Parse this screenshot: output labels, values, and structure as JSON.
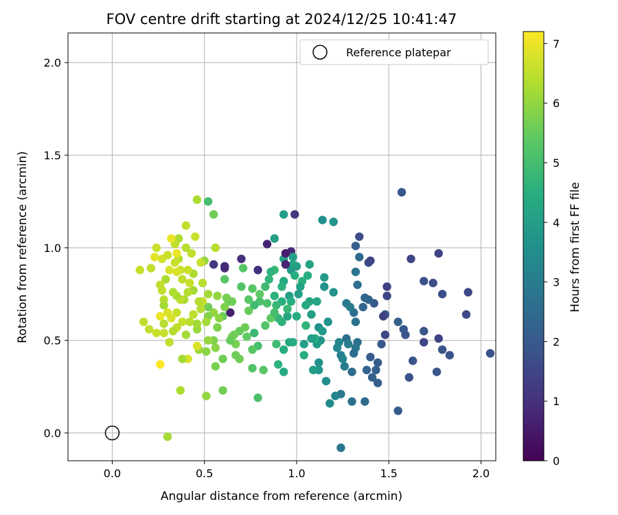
{
  "chart_data": {
    "type": "scatter",
    "title": "FOV centre drift starting at 2024/12/25 10:41:47",
    "xlabel": "Angular distance from reference (arcmin)",
    "ylabel": "Rotation from reference (arcmin)",
    "xlim": [
      -0.24,
      2.08
    ],
    "ylim": [
      -0.15,
      2.16
    ],
    "x_ticks": [
      0.0,
      0.5,
      1.0,
      1.5,
      2.0
    ],
    "x_tick_labels": [
      "0.0",
      "0.5",
      "1.0",
      "1.5",
      "2.0"
    ],
    "y_ticks": [
      0.0,
      0.5,
      1.0,
      1.5,
      2.0
    ],
    "y_tick_labels": [
      "0.0",
      "0.5",
      "1.0",
      "1.5",
      "2.0"
    ],
    "grid": true,
    "colormap": "viridis",
    "colorbar": {
      "label": "Hours from first FF file",
      "range": [
        0,
        7.2
      ],
      "ticks": [
        0,
        1,
        2,
        3,
        4,
        5,
        6,
        7
      ],
      "tick_labels": [
        "0",
        "1",
        "2",
        "3",
        "4",
        "5",
        "6",
        "7"
      ]
    },
    "reference": {
      "x": 0.0,
      "y": 0.0,
      "label": "Reference platepar"
    },
    "legend_position": "top-right",
    "points": [
      [
        1.57,
        1.3,
        1.9
      ],
      [
        1.62,
        0.94,
        1.5
      ],
      [
        1.77,
        0.97,
        1.4
      ],
      [
        1.69,
        0.82,
        1.8
      ],
      [
        1.74,
        0.81,
        1.7
      ],
      [
        1.79,
        0.75,
        1.7
      ],
      [
        1.93,
        0.76,
        1.6
      ],
      [
        1.92,
        0.64,
        1.6
      ],
      [
        2.05,
        0.43,
        1.8
      ],
      [
        1.83,
        0.42,
        1.8
      ],
      [
        1.79,
        0.45,
        1.9
      ],
      [
        1.77,
        0.51,
        1.4
      ],
      [
        1.69,
        0.49,
        1.5
      ],
      [
        1.69,
        0.55,
        1.9
      ],
      [
        1.76,
        0.33,
        1.9
      ],
      [
        1.63,
        0.39,
        1.9
      ],
      [
        1.61,
        0.3,
        1.8
      ],
      [
        1.59,
        0.53,
        1.8
      ],
      [
        1.58,
        0.56,
        2.0
      ],
      [
        1.55,
        0.6,
        2.2
      ],
      [
        1.55,
        0.12,
        2.1
      ],
      [
        1.49,
        0.79,
        1.4
      ],
      [
        1.49,
        0.74,
        1.5
      ],
      [
        1.48,
        0.64,
        1.9
      ],
      [
        1.47,
        0.63,
        1.4
      ],
      [
        1.48,
        0.53,
        1.5
      ],
      [
        1.46,
        0.48,
        2.0
      ],
      [
        1.44,
        0.38,
        2.1
      ],
      [
        1.43,
        0.34,
        2.2
      ],
      [
        1.44,
        0.27,
        2.2
      ],
      [
        1.4,
        0.93,
        1.4
      ],
      [
        1.39,
        0.92,
        1.6
      ],
      [
        1.42,
        0.7,
        2.0
      ],
      [
        1.39,
        0.72,
        2.3
      ],
      [
        1.37,
        0.73,
        2.4
      ],
      [
        1.36,
        0.68,
        2.4
      ],
      [
        1.4,
        0.41,
        2.1
      ],
      [
        1.41,
        0.3,
        2.2
      ],
      [
        1.38,
        0.34,
        2.3
      ],
      [
        1.37,
        0.17,
        2.5
      ],
      [
        1.34,
        1.06,
        1.7
      ],
      [
        1.32,
        1.01,
        2.1
      ],
      [
        1.34,
        0.95,
        2.5
      ],
      [
        1.32,
        0.87,
        2.8
      ],
      [
        1.33,
        0.8,
        2.6
      ],
      [
        1.32,
        0.6,
        2.7
      ],
      [
        1.33,
        0.49,
        2.7
      ],
      [
        1.32,
        0.46,
        2.8
      ],
      [
        1.31,
        0.43,
        2.6
      ],
      [
        1.3,
        0.33,
        2.5
      ],
      [
        1.3,
        0.17,
        2.7
      ],
      [
        1.31,
        0.65,
        2.6
      ],
      [
        1.29,
        0.68,
        3.0
      ],
      [
        1.27,
        0.51,
        2.6
      ],
      [
        1.28,
        0.48,
        3.0
      ],
      [
        1.26,
        0.36,
        3.0
      ],
      [
        1.24,
        0.42,
        3.0
      ],
      [
        1.25,
        0.4,
        3.2
      ],
      [
        1.24,
        0.21,
        2.9
      ],
      [
        1.23,
        0.49,
        3.3
      ],
      [
        1.21,
        0.2,
        3.2
      ],
      [
        1.24,
        -0.08,
        2.8
      ],
      [
        1.2,
        1.14,
        3.7
      ],
      [
        1.18,
        0.16,
        3.4
      ],
      [
        1.16,
        0.28,
        3.5
      ],
      [
        1.17,
        0.6,
        3.6
      ],
      [
        1.2,
        0.76,
        3.7
      ],
      [
        1.14,
        1.15,
        3.6
      ],
      [
        1.15,
        0.84,
        3.9
      ],
      [
        1.15,
        0.79,
        3.7
      ],
      [
        1.13,
        0.5,
        3.7
      ],
      [
        1.12,
        0.57,
        3.6
      ],
      [
        1.12,
        0.34,
        3.8
      ],
      [
        1.12,
        0.38,
        3.6
      ],
      [
        1.11,
        0.48,
        3.9
      ],
      [
        1.11,
        0.71,
        4.2
      ],
      [
        1.1,
        0.51,
        4.4
      ],
      [
        1.09,
        0.34,
        4.0
      ],
      [
        1.08,
        0.51,
        4.0
      ],
      [
        1.08,
        0.64,
        4.0
      ],
      [
        1.07,
        0.91,
        4.1
      ],
      [
        1.07,
        0.71,
        4.2
      ],
      [
        1.06,
        0.85,
        4.5
      ],
      [
        1.05,
        0.58,
        4.7
      ],
      [
        1.04,
        0.42,
        4.5
      ],
      [
        1.04,
        0.48,
        4.0
      ],
      [
        1.03,
        0.82,
        4.6
      ],
      [
        1.02,
        0.79,
        4.1
      ],
      [
        1.01,
        0.75,
        4.0
      ],
      [
        1.0,
        0.9,
        4.0
      ],
      [
        0.99,
        1.18,
        1.2
      ],
      [
        0.97,
        0.98,
        0.8
      ],
      [
        0.98,
        0.95,
        4.0
      ],
      [
        0.98,
        0.91,
        4.2
      ],
      [
        0.97,
        0.88,
        3.9
      ],
      [
        0.99,
        0.85,
        4.5
      ],
      [
        0.98,
        0.49,
        4.4
      ],
      [
        0.96,
        0.74,
        4.0
      ],
      [
        0.96,
        0.49,
        4.3
      ],
      [
        0.95,
        0.63,
        4.2
      ],
      [
        0.93,
        1.18,
        4.0
      ],
      [
        0.93,
        0.94,
        4.1
      ],
      [
        0.93,
        0.82,
        4.3
      ],
      [
        0.92,
        0.71,
        4.5
      ],
      [
        0.92,
        0.6,
        4.6
      ],
      [
        0.93,
        0.45,
        4.4
      ],
      [
        0.93,
        0.33,
        4.3
      ],
      [
        0.94,
        0.97,
        0.6
      ],
      [
        0.94,
        0.91,
        0.7
      ],
      [
        0.9,
        0.62,
        4.7
      ],
      [
        0.89,
        0.48,
        4.9
      ],
      [
        0.89,
        0.69,
        4.8
      ],
      [
        0.88,
        0.88,
        4.8
      ],
      [
        0.88,
        1.05,
        4.0
      ],
      [
        0.9,
        0.37,
        4.6
      ],
      [
        0.88,
        0.74,
        4.6
      ],
      [
        0.86,
        0.87,
        4.6
      ],
      [
        0.85,
        0.83,
        4.7
      ],
      [
        0.86,
        0.62,
        5.4
      ],
      [
        0.84,
        1.02,
        0.7
      ],
      [
        0.83,
        0.58,
        5.2
      ],
      [
        0.83,
        0.79,
        4.9
      ],
      [
        0.82,
        0.34,
        5.3
      ],
      [
        0.8,
        0.71,
        5.1
      ],
      [
        0.79,
        0.88,
        1.0
      ],
      [
        0.79,
        0.47,
        5.0
      ],
      [
        0.79,
        0.19,
        5.1
      ],
      [
        0.77,
        0.69,
        4.9
      ],
      [
        0.77,
        0.54,
        4.8
      ],
      [
        0.76,
        0.45,
        5.3
      ],
      [
        0.76,
        0.35,
        5.2
      ],
      [
        0.76,
        0.78,
        5.3
      ],
      [
        0.74,
        0.72,
        5.3
      ],
      [
        0.73,
        0.52,
        5.4
      ],
      [
        0.72,
        0.57,
        5.6
      ],
      [
        0.71,
        0.89,
        5.3
      ],
      [
        0.7,
        0.79,
        5.2
      ],
      [
        0.7,
        0.94,
        1.0
      ],
      [
        0.69,
        0.55,
        5.5
      ],
      [
        0.69,
        0.4,
        5.6
      ],
      [
        0.67,
        0.48,
        5.7
      ],
      [
        0.67,
        0.42,
        5.6
      ],
      [
        0.65,
        0.52,
        5.7
      ],
      [
        0.64,
        0.5,
        5.5
      ],
      [
        0.64,
        0.65,
        0.6
      ],
      [
        0.63,
        0.71,
        5.6
      ],
      [
        0.62,
        0.73,
        5.7
      ],
      [
        0.61,
        0.89,
        1.0
      ],
      [
        0.61,
        0.9,
        0.8
      ],
      [
        0.61,
        0.83,
        5.3
      ],
      [
        0.61,
        0.68,
        5.8
      ],
      [
        0.6,
        0.63,
        5.5
      ],
      [
        0.6,
        0.4,
        5.6
      ],
      [
        0.6,
        0.23,
        5.6
      ],
      [
        0.57,
        0.57,
        5.8
      ],
      [
        0.56,
        0.46,
        5.9
      ],
      [
        0.56,
        0.36,
        5.7
      ],
      [
        0.55,
        0.5,
        5.8
      ],
      [
        0.55,
        0.65,
        6.0
      ],
      [
        0.55,
        0.91,
        1.2
      ],
      [
        0.56,
        1.0,
        6.4
      ],
      [
        0.55,
        1.18,
        5.6
      ],
      [
        0.52,
        1.25,
        5.0
      ],
      [
        0.52,
        0.75,
        6.2
      ],
      [
        0.52,
        0.68,
        5.6
      ],
      [
        0.52,
        0.63,
        5.8
      ],
      [
        0.51,
        0.44,
        5.9
      ],
      [
        0.51,
        0.6,
        6.2
      ],
      [
        0.51,
        0.2,
        6.0
      ],
      [
        0.5,
        0.93,
        6.0
      ],
      [
        0.49,
        0.81,
        6.4
      ],
      [
        0.49,
        0.71,
        6.6
      ],
      [
        0.48,
        0.92,
        6.6
      ],
      [
        0.48,
        0.67,
        6.4
      ],
      [
        0.47,
        0.45,
        6.1
      ],
      [
        0.46,
        0.47,
        6.8
      ],
      [
        0.46,
        0.56,
        6.1
      ],
      [
        0.46,
        0.59,
        6.2
      ],
      [
        0.46,
        1.26,
        6.3
      ],
      [
        0.45,
        1.06,
        6.6
      ],
      [
        0.44,
        0.86,
        6.3
      ],
      [
        0.44,
        0.64,
        6.5
      ],
      [
        0.44,
        0.77,
        6.2
      ],
      [
        0.43,
        0.97,
        6.5
      ],
      [
        0.42,
        0.6,
        6.4
      ],
      [
        0.41,
        0.4,
        6.8
      ],
      [
        0.41,
        0.76,
        6.4
      ],
      [
        0.41,
        0.88,
        6.6
      ],
      [
        0.4,
        1.12,
        6.5
      ],
      [
        0.4,
        1.0,
        6.4
      ],
      [
        0.4,
        0.53,
        6.2
      ],
      [
        0.39,
        0.72,
        6.3
      ],
      [
        0.38,
        0.83,
        6.5
      ],
      [
        0.38,
        0.6,
        6.6
      ],
      [
        0.38,
        0.4,
        6.2
      ],
      [
        0.37,
        0.23,
        6.3
      ],
      [
        0.37,
        0.88,
        6.6
      ],
      [
        0.37,
        0.72,
        6.5
      ],
      [
        0.36,
        0.94,
        6.4
      ],
      [
        0.36,
        1.05,
        6.3
      ],
      [
        0.35,
        0.97,
        7.0
      ],
      [
        0.35,
        0.87,
        6.8
      ],
      [
        0.35,
        0.74,
        6.3
      ],
      [
        0.35,
        0.57,
        6.5
      ],
      [
        0.35,
        0.65,
        6.6
      ],
      [
        0.34,
        1.02,
        6.5
      ],
      [
        0.34,
        0.92,
        6.6
      ],
      [
        0.33,
        0.76,
        6.3
      ],
      [
        0.33,
        0.55,
        6.4
      ],
      [
        0.32,
        0.62,
        6.8
      ],
      [
        0.32,
        1.05,
        7.0
      ],
      [
        0.31,
        0.88,
        6.8
      ],
      [
        0.31,
        0.49,
        6.5
      ],
      [
        0.3,
        0.96,
        6.6
      ],
      [
        0.3,
        0.65,
        6.8
      ],
      [
        0.3,
        -0.02,
        6.2
      ],
      [
        0.29,
        0.83,
        6.3
      ],
      [
        0.28,
        0.72,
        6.4
      ],
      [
        0.28,
        0.69,
        6.2
      ],
      [
        0.28,
        0.59,
        6.4
      ],
      [
        0.28,
        0.54,
        6.6
      ],
      [
        0.27,
        0.77,
        6.5
      ],
      [
        0.27,
        0.94,
        6.7
      ],
      [
        0.26,
        0.8,
        6.5
      ],
      [
        0.26,
        0.63,
        7.0
      ],
      [
        0.26,
        0.37,
        7.2
      ],
      [
        0.24,
        1.0,
        6.6
      ],
      [
        0.24,
        0.54,
        6.6
      ],
      [
        0.23,
        0.95,
        6.9
      ],
      [
        0.21,
        0.89,
        6.5
      ],
      [
        0.2,
        0.56,
        6.5
      ],
      [
        0.17,
        0.6,
        6.5
      ],
      [
        0.15,
        0.88,
        6.6
      ],
      [
        0.52,
        0.5,
        6.0
      ],
      [
        0.58,
        0.62,
        5.9
      ],
      [
        0.66,
        0.53,
        5.6
      ],
      [
        0.74,
        0.66,
        5.5
      ],
      [
        0.8,
        0.75,
        5.4
      ],
      [
        0.84,
        0.7,
        5.1
      ],
      [
        0.88,
        0.65,
        5.0
      ],
      [
        0.97,
        0.71,
        4.5
      ],
      [
        1.0,
        0.63,
        4.4
      ],
      [
        1.05,
        0.69,
        4.3
      ],
      [
        1.14,
        0.55,
        3.9
      ],
      [
        1.22,
        0.46,
        3.3
      ],
      [
        1.27,
        0.7,
        3.0
      ],
      [
        0.47,
        0.71,
        6.4
      ],
      [
        0.42,
        0.81,
        6.6
      ],
      [
        0.57,
        0.74,
        6.0
      ],
      [
        0.65,
        0.71,
        5.6
      ],
      [
        0.92,
        0.79,
        4.6
      ],
      [
        0.95,
        0.67,
        4.8
      ]
    ]
  }
}
